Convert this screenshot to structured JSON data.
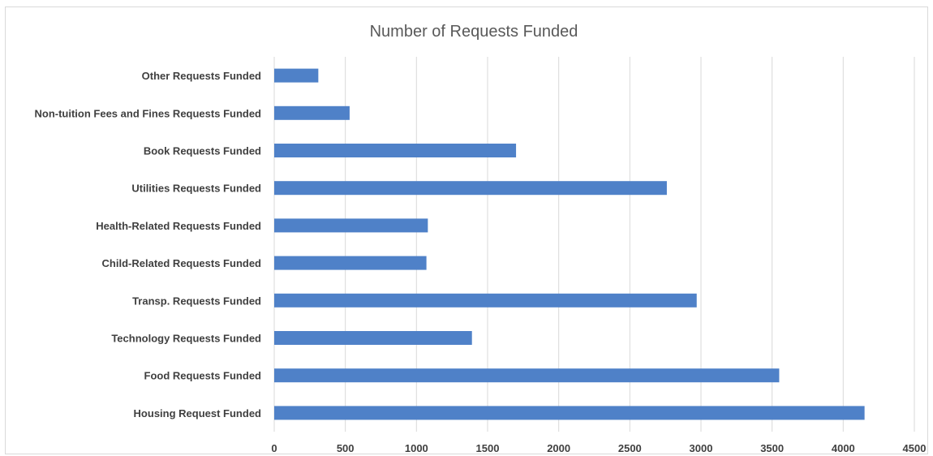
{
  "chart_data": {
    "type": "bar",
    "orientation": "horizontal",
    "title": "Number of Requests Funded",
    "xlabel": "",
    "ylabel": "",
    "categories": [
      "Other Requests Funded",
      "Non-tuition Fees and Fines Requests Funded",
      "Book Requests Funded",
      "Utilities Requests Funded",
      "Health-Related Requests Funded",
      "Child-Related Requests Funded",
      "Transp. Requests Funded",
      "Technology Requests Funded",
      "Food Requests Funded",
      "Housing Request Funded"
    ],
    "values": [
      310,
      530,
      1700,
      2760,
      1080,
      1070,
      2970,
      1390,
      3550,
      4150
    ],
    "xlim": [
      0,
      4500
    ],
    "xticks": [
      "0",
      "500",
      "1000",
      "1500",
      "2000",
      "2500",
      "3000",
      "3500",
      "4000",
      "4500"
    ],
    "grid": "vertical",
    "legend": "none",
    "bar_color": "#4f81c8"
  }
}
